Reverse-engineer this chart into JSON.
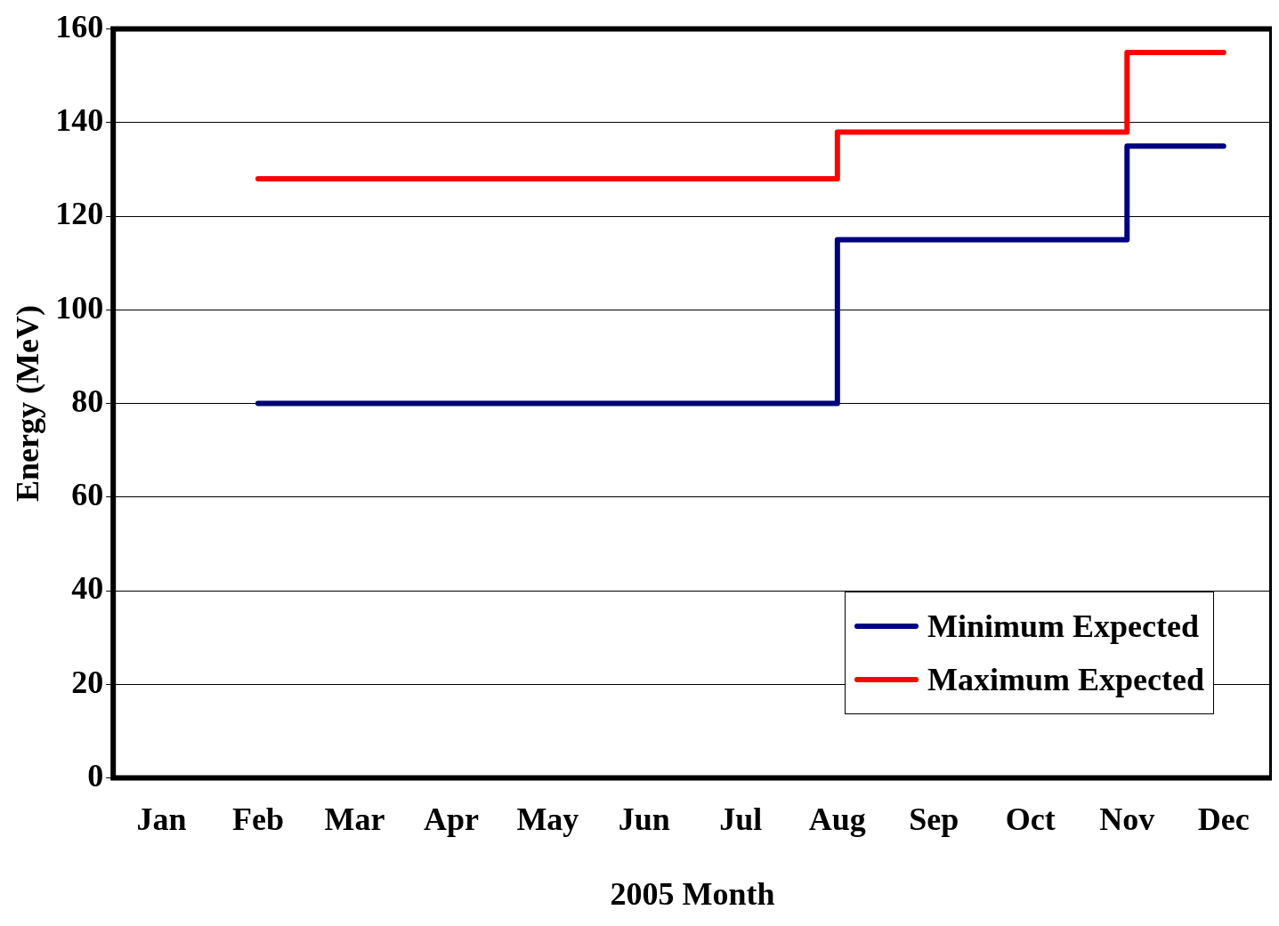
{
  "chart_data": {
    "type": "step",
    "xlabel": "2005 Month",
    "ylabel": "Energy (MeV)",
    "categories": [
      "Jan",
      "Feb",
      "Mar",
      "Apr",
      "May",
      "Jun",
      "Jul",
      "Aug",
      "Sep",
      "Oct",
      "Nov",
      "Dec"
    ],
    "series": [
      {
        "name": "Minimum Expected",
        "color": "#000080",
        "values": [
          null,
          80,
          80,
          80,
          80,
          80,
          80,
          115,
          115,
          115,
          135,
          135
        ]
      },
      {
        "name": "Maximum Expected",
        "color": "#ff0000",
        "values": [
          null,
          128,
          128,
          128,
          128,
          128,
          128,
          138,
          138,
          138,
          155,
          155
        ]
      }
    ],
    "ylim": [
      0,
      160
    ],
    "yticks": [
      0,
      20,
      40,
      60,
      80,
      100,
      120,
      140,
      160
    ],
    "grid": "y",
    "legend": "bottom right",
    "marker": "none",
    "line_style": "solid"
  }
}
